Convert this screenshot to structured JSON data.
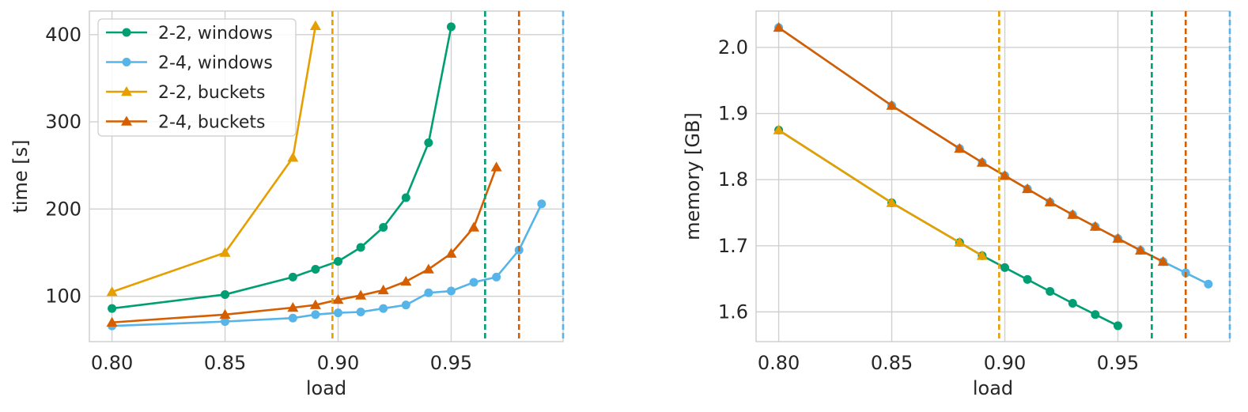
{
  "colors": {
    "green": "#009E73",
    "blue": "#56B4E9",
    "yellow": "#E69F00",
    "orange": "#D55E00",
    "grid": "#d0d0d0",
    "spine": "#cccccc"
  },
  "legend": {
    "placement": "top-left of left panel",
    "entries": [
      "2-2, windows",
      "2-4, windows",
      "2-2, buckets",
      "2-4, buckets"
    ]
  },
  "chart_data": [
    {
      "type": "line",
      "xlabel": "load",
      "ylabel": "time [s]",
      "xlim": [
        0.79,
        0.9995
      ],
      "ylim": [
        48,
        427
      ],
      "xticks": [
        0.8,
        0.85,
        0.9,
        0.95
      ],
      "xtick_labels": [
        "0.80",
        "0.85",
        "0.90",
        "0.95"
      ],
      "yticks": [
        100,
        200,
        300,
        400
      ],
      "ytick_labels": [
        "100",
        "200",
        "300",
        "400"
      ],
      "grid": true,
      "series": [
        {
          "name": "2-2, windows",
          "color": "#009E73",
          "marker": "circle",
          "x": [
            0.8,
            0.85,
            0.88,
            0.89,
            0.9,
            0.91,
            0.92,
            0.93,
            0.94,
            0.95
          ],
          "y": [
            86,
            102,
            122,
            131,
            140,
            156,
            179,
            213,
            276,
            409
          ]
        },
        {
          "name": "2-4, windows",
          "color": "#56B4E9",
          "marker": "circle",
          "x": [
            0.8,
            0.85,
            0.88,
            0.89,
            0.9,
            0.91,
            0.92,
            0.93,
            0.94,
            0.95,
            0.96,
            0.97,
            0.98,
            0.99
          ],
          "y": [
            66,
            71,
            75,
            79,
            81,
            82,
            86,
            90,
            104,
            106,
            116,
            122,
            153,
            206
          ]
        },
        {
          "name": "2-2, buckets",
          "color": "#E69F00",
          "marker": "triangle",
          "x": [
            0.8,
            0.85,
            0.88,
            0.89
          ],
          "y": [
            105,
            150,
            259,
            410
          ]
        },
        {
          "name": "2-4, buckets",
          "color": "#D55E00",
          "marker": "triangle",
          "x": [
            0.8,
            0.85,
            0.88,
            0.89,
            0.9,
            0.91,
            0.92,
            0.93,
            0.94,
            0.95,
            0.96,
            0.97
          ],
          "y": [
            70,
            79,
            87,
            90,
            96,
            101,
            107,
            117,
            131,
            149,
            179,
            248
          ]
        }
      ],
      "vlines": [
        {
          "x": 0.8975,
          "color": "#E69F00",
          "style": "dashed"
        },
        {
          "x": 0.965,
          "color": "#009E73",
          "style": "dashed"
        },
        {
          "x": 0.98,
          "color": "#D55E00",
          "style": "dashed"
        },
        {
          "x": 0.9995,
          "color": "#56B4E9",
          "style": "dashed"
        }
      ]
    },
    {
      "type": "line",
      "xlabel": "load",
      "ylabel": "memory [GB]",
      "xlim": [
        0.79,
        0.9995
      ],
      "ylim": [
        1.555,
        2.055
      ],
      "xticks": [
        0.8,
        0.85,
        0.9,
        0.95
      ],
      "xtick_labels": [
        "0.80",
        "0.85",
        "0.90",
        "0.95"
      ],
      "yticks": [
        1.6,
        1.7,
        1.8,
        1.9,
        2.0
      ],
      "ytick_labels": [
        "1.6",
        "1.7",
        "1.8",
        "1.9",
        "2.0"
      ],
      "grid": true,
      "series": [
        {
          "name": "2-2, windows",
          "color": "#009E73",
          "marker": "circle",
          "x": [
            0.8,
            0.85,
            0.88,
            0.89,
            0.9,
            0.91,
            0.92,
            0.93,
            0.94,
            0.95
          ],
          "y": [
            1.875,
            1.765,
            1.705,
            1.685,
            1.667,
            1.649,
            1.631,
            1.613,
            1.596,
            1.579
          ]
        },
        {
          "name": "2-4, windows",
          "color": "#56B4E9",
          "marker": "circle",
          "x": [
            0.8,
            0.85,
            0.88,
            0.89,
            0.9,
            0.91,
            0.92,
            0.93,
            0.94,
            0.95,
            0.96,
            0.97,
            0.98,
            0.99
          ],
          "y": [
            2.03,
            1.912,
            1.847,
            1.826,
            1.806,
            1.786,
            1.766,
            1.747,
            1.729,
            1.711,
            1.693,
            1.676,
            1.659,
            1.642
          ]
        },
        {
          "name": "2-2, buckets",
          "color": "#E69F00",
          "marker": "triangle",
          "x": [
            0.8,
            0.85,
            0.88,
            0.89
          ],
          "y": [
            1.875,
            1.765,
            1.705,
            1.685
          ]
        },
        {
          "name": "2-4, buckets",
          "color": "#D55E00",
          "marker": "triangle",
          "x": [
            0.8,
            0.85,
            0.88,
            0.89,
            0.9,
            0.91,
            0.92,
            0.93,
            0.94,
            0.95,
            0.96,
            0.97
          ],
          "y": [
            2.03,
            1.912,
            1.847,
            1.826,
            1.806,
            1.786,
            1.766,
            1.747,
            1.729,
            1.711,
            1.693,
            1.676
          ]
        }
      ],
      "vlines": [
        {
          "x": 0.8975,
          "color": "#E69F00",
          "style": "dashed"
        },
        {
          "x": 0.965,
          "color": "#009E73",
          "style": "dashed"
        },
        {
          "x": 0.98,
          "color": "#D55E00",
          "style": "dashed"
        },
        {
          "x": 0.9995,
          "color": "#56B4E9",
          "style": "dashed"
        }
      ]
    }
  ]
}
